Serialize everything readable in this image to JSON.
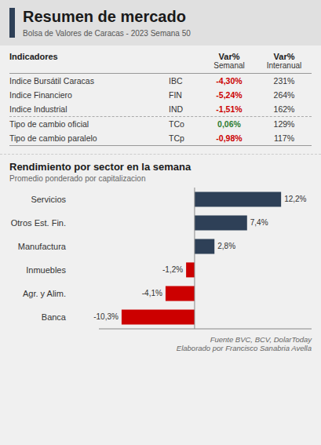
{
  "title": "Resumen de mercado",
  "subtitle": "Bolsa de Valores de Caracas - 2023 Semana 50",
  "table": {
    "columns": [
      [
        "Indicadores"
      ],
      [],
      [
        "Var%",
        "Semanal"
      ],
      [
        "Var%",
        "Interanual"
      ]
    ],
    "rows": [
      {
        "name": "Indice Bursátil Caracas",
        "code": "IBC",
        "semanal": "-4,30%",
        "interanual": "231%",
        "colors": [
          "#cc0000",
          "#333333"
        ]
      },
      {
        "name": "Indice Financiero",
        "code": "FIN",
        "semanal": "-5,24%",
        "interanual": "264%",
        "colors": [
          "#cc0000",
          "#333333"
        ]
      },
      {
        "name": "Indice Industrial",
        "code": "IND",
        "semanal": "-1,51%",
        "interanual": "162%",
        "colors": [
          "#cc0000",
          "#333333"
        ]
      },
      {
        "name": "Tipo de cambio oficial",
        "code": "TCo",
        "semanal": "0,06%",
        "interanual": "129%",
        "colors": [
          "#2e7d32",
          "#333333"
        ]
      },
      {
        "name": "Tipo de cambio paralelo",
        "code": "TCp",
        "semanal": "-0,98%",
        "interanual": "117%",
        "colors": [
          "#cc0000",
          "#333333"
        ]
      }
    ],
    "dashed_after_row": 2
  },
  "chart_data": {
    "type": "bar",
    "orientation": "horizontal",
    "title": "Rendimiento por sector en la semana",
    "subtitle": "Promedio ponderado por capitalizacion",
    "categories": [
      "Servicios",
      "Otros Est. Fin.",
      "Manufactura",
      "Inmuebles",
      "Agr. y Alim.",
      "Banca"
    ],
    "values": [
      12.2,
      7.4,
      2.8,
      -1.2,
      -4.1,
      -10.3
    ],
    "value_labels": [
      "12,2%",
      "7,4%",
      "2,8%",
      "-1,2%",
      "-4,1%",
      "-10,3%"
    ],
    "data_labels": true,
    "colors": [
      "#2e4057",
      "#2e4057",
      "#2e4057",
      "#cc0000",
      "#cc0000",
      "#cc0000"
    ],
    "xlim": [
      -13.5,
      16.5
    ],
    "tick_labels": false,
    "grid": false
  },
  "footer": [
    "Fuente BVC, BCV, DolarToday",
    "Elaborado por Francisco Sanabria Avella"
  ]
}
